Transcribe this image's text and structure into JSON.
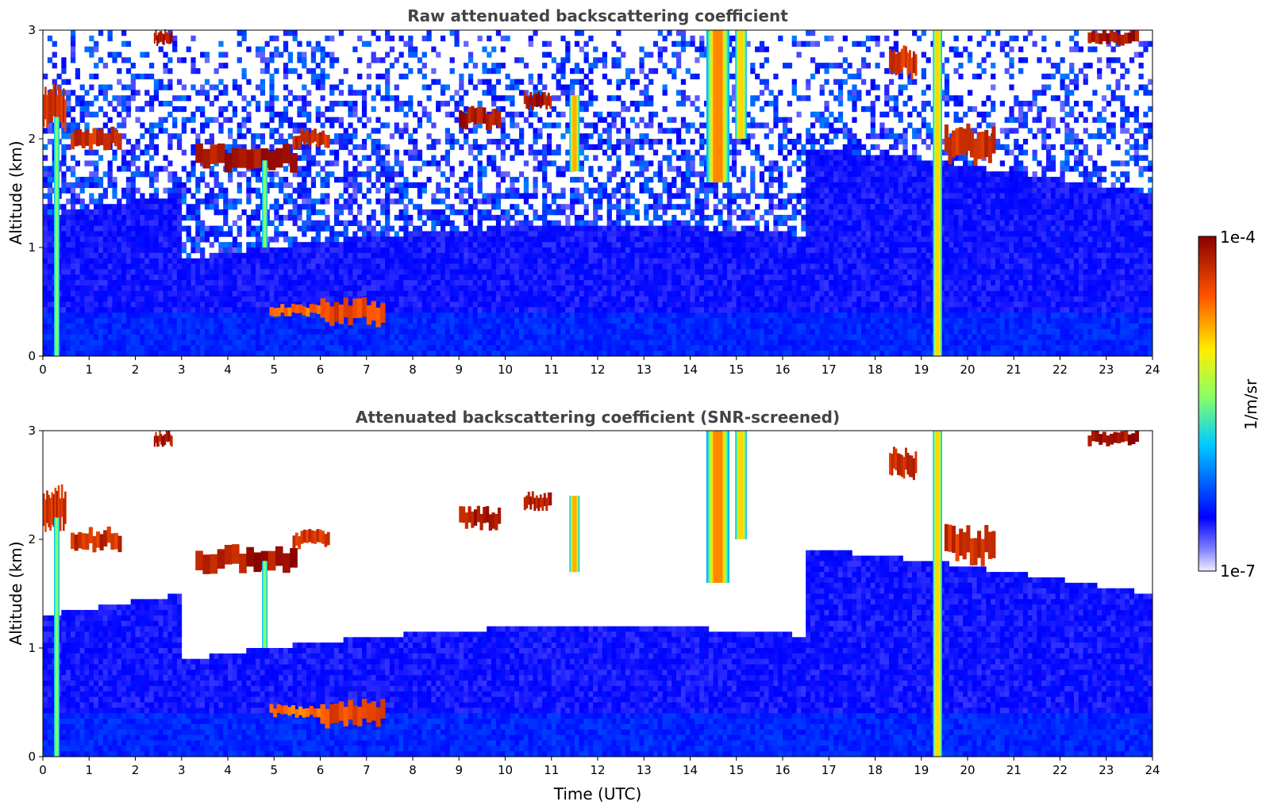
{
  "chart_data": [
    {
      "type": "heatmap",
      "title": "Raw attenuated backscattering coefficient",
      "ylabel": "Altitude (km)",
      "xlabel": "",
      "xlim": [
        0,
        24
      ],
      "ylim": [
        0,
        3
      ],
      "xticks": [
        "0",
        "1",
        "2",
        "3",
        "4",
        "5",
        "6",
        "7",
        "8",
        "9",
        "10",
        "11",
        "12",
        "13",
        "14",
        "15",
        "16",
        "17",
        "18",
        "19",
        "20",
        "21",
        "22",
        "23",
        "24"
      ],
      "yticks": [
        "0",
        "1",
        "2",
        "3"
      ],
      "noise_fraction": 0.85,
      "features": [
        {
          "kind": "layer",
          "t0": 3.3,
          "t1": 5.5,
          "alt": 1.82,
          "thickness": 0.18,
          "intensity": 1.0
        },
        {
          "kind": "layer",
          "t0": 5.4,
          "t1": 6.2,
          "alt": 2.0,
          "thickness": 0.12,
          "intensity": 0.95
        },
        {
          "kind": "layer",
          "t0": 0.6,
          "t1": 1.7,
          "alt": 2.0,
          "thickness": 0.15,
          "intensity": 0.95
        },
        {
          "kind": "layer",
          "t0": 9.0,
          "t1": 9.9,
          "alt": 2.2,
          "thickness": 0.15,
          "intensity": 1.0
        },
        {
          "kind": "layer",
          "t0": 10.4,
          "t1": 11.0,
          "alt": 2.35,
          "thickness": 0.12,
          "intensity": 1.0
        },
        {
          "kind": "layer",
          "t0": 6.0,
          "t1": 7.4,
          "alt": 0.4,
          "thickness": 0.18,
          "intensity": 0.9
        },
        {
          "kind": "layer",
          "t0": 4.9,
          "t1": 6.0,
          "alt": 0.42,
          "thickness": 0.08,
          "intensity": 0.85
        },
        {
          "kind": "layer",
          "t0": 22.6,
          "t1": 23.7,
          "alt": 2.93,
          "thickness": 0.1,
          "intensity": 1.0
        },
        {
          "kind": "layer",
          "t0": 2.4,
          "t1": 2.8,
          "alt": 2.93,
          "thickness": 0.1,
          "intensity": 1.0
        },
        {
          "kind": "layer",
          "t0": 19.5,
          "t1": 20.6,
          "alt": 1.95,
          "thickness": 0.25,
          "intensity": 0.95
        },
        {
          "kind": "layer",
          "t0": 0.0,
          "t1": 0.5,
          "alt": 2.3,
          "thickness": 0.3,
          "intensity": 0.95
        },
        {
          "kind": "layer",
          "t0": 18.3,
          "t1": 18.9,
          "alt": 2.7,
          "thickness": 0.2,
          "intensity": 0.95
        },
        {
          "kind": "column",
          "t": 14.6,
          "top": 3.0,
          "bottom": 1.6,
          "width": 0.5,
          "intensity": 0.85
        },
        {
          "kind": "column",
          "t": 15.1,
          "top": 3.0,
          "bottom": 2.0,
          "width": 0.25,
          "intensity": 0.75
        },
        {
          "kind": "column",
          "t": 11.5,
          "top": 2.4,
          "bottom": 1.7,
          "width": 0.22,
          "intensity": 0.8
        },
        {
          "kind": "column",
          "t": 19.35,
          "top": 3.0,
          "bottom": 0.0,
          "width": 0.2,
          "intensity": 0.75
        },
        {
          "kind": "column",
          "t": 0.3,
          "top": 2.2,
          "bottom": 0.0,
          "width": 0.12,
          "intensity": 0.55
        },
        {
          "kind": "column",
          "t": 4.8,
          "top": 1.8,
          "bottom": 1.0,
          "width": 0.12,
          "intensity": 0.55
        }
      ]
    },
    {
      "type": "heatmap",
      "title": "Attenuated backscattering coefficient (SNR-screened)",
      "ylabel": "Altitude (km)",
      "xlabel": "Time (UTC)",
      "xlim": [
        0,
        24
      ],
      "ylim": [
        0,
        3
      ],
      "xticks": [
        "0",
        "1",
        "2",
        "3",
        "4",
        "5",
        "6",
        "7",
        "8",
        "9",
        "10",
        "11",
        "12",
        "13",
        "14",
        "15",
        "16",
        "17",
        "18",
        "19",
        "20",
        "21",
        "22",
        "23",
        "24"
      ],
      "yticks": [
        "0",
        "1",
        "2",
        "3"
      ],
      "noise_fraction": 0.0,
      "features": [
        {
          "kind": "layer",
          "t0": 3.3,
          "t1": 5.5,
          "alt": 1.82,
          "thickness": 0.18,
          "intensity": 1.0
        },
        {
          "kind": "layer",
          "t0": 5.4,
          "t1": 6.2,
          "alt": 2.0,
          "thickness": 0.12,
          "intensity": 0.95
        },
        {
          "kind": "layer",
          "t0": 0.6,
          "t1": 1.7,
          "alt": 2.0,
          "thickness": 0.15,
          "intensity": 0.95
        },
        {
          "kind": "layer",
          "t0": 9.0,
          "t1": 9.9,
          "alt": 2.2,
          "thickness": 0.15,
          "intensity": 1.0
        },
        {
          "kind": "layer",
          "t0": 10.4,
          "t1": 11.0,
          "alt": 2.35,
          "thickness": 0.12,
          "intensity": 1.0
        },
        {
          "kind": "layer",
          "t0": 6.0,
          "t1": 7.4,
          "alt": 0.4,
          "thickness": 0.18,
          "intensity": 0.9
        },
        {
          "kind": "layer",
          "t0": 4.9,
          "t1": 6.0,
          "alt": 0.42,
          "thickness": 0.08,
          "intensity": 0.85
        },
        {
          "kind": "layer",
          "t0": 22.6,
          "t1": 23.7,
          "alt": 2.93,
          "thickness": 0.1,
          "intensity": 1.0
        },
        {
          "kind": "layer",
          "t0": 2.4,
          "t1": 2.8,
          "alt": 2.93,
          "thickness": 0.1,
          "intensity": 1.0
        },
        {
          "kind": "layer",
          "t0": 19.5,
          "t1": 20.6,
          "alt": 1.95,
          "thickness": 0.25,
          "intensity": 0.95
        },
        {
          "kind": "layer",
          "t0": 0.0,
          "t1": 0.5,
          "alt": 2.3,
          "thickness": 0.3,
          "intensity": 0.95
        },
        {
          "kind": "layer",
          "t0": 18.3,
          "t1": 18.9,
          "alt": 2.7,
          "thickness": 0.2,
          "intensity": 0.95
        },
        {
          "kind": "column",
          "t": 14.6,
          "top": 3.0,
          "bottom": 1.6,
          "width": 0.5,
          "intensity": 0.85
        },
        {
          "kind": "column",
          "t": 15.1,
          "top": 3.0,
          "bottom": 2.0,
          "width": 0.25,
          "intensity": 0.75
        },
        {
          "kind": "column",
          "t": 11.5,
          "top": 2.4,
          "bottom": 1.7,
          "width": 0.22,
          "intensity": 0.8
        },
        {
          "kind": "column",
          "t": 19.35,
          "top": 3.0,
          "bottom": 0.0,
          "width": 0.2,
          "intensity": 0.75
        },
        {
          "kind": "column",
          "t": 0.3,
          "top": 2.2,
          "bottom": 0.0,
          "width": 0.12,
          "intensity": 0.55
        },
        {
          "kind": "column",
          "t": 4.8,
          "top": 1.8,
          "bottom": 1.0,
          "width": 0.12,
          "intensity": 0.55
        }
      ]
    }
  ],
  "colorbar": {
    "label": "1/m/sr",
    "min_label": "1e-7",
    "max_label": "1e-4",
    "colormap": "jet",
    "colors": [
      "#eeeeff",
      "#0000ff",
      "#00ccff",
      "#88ff66",
      "#ffee00",
      "#ff5500",
      "#880000"
    ]
  }
}
